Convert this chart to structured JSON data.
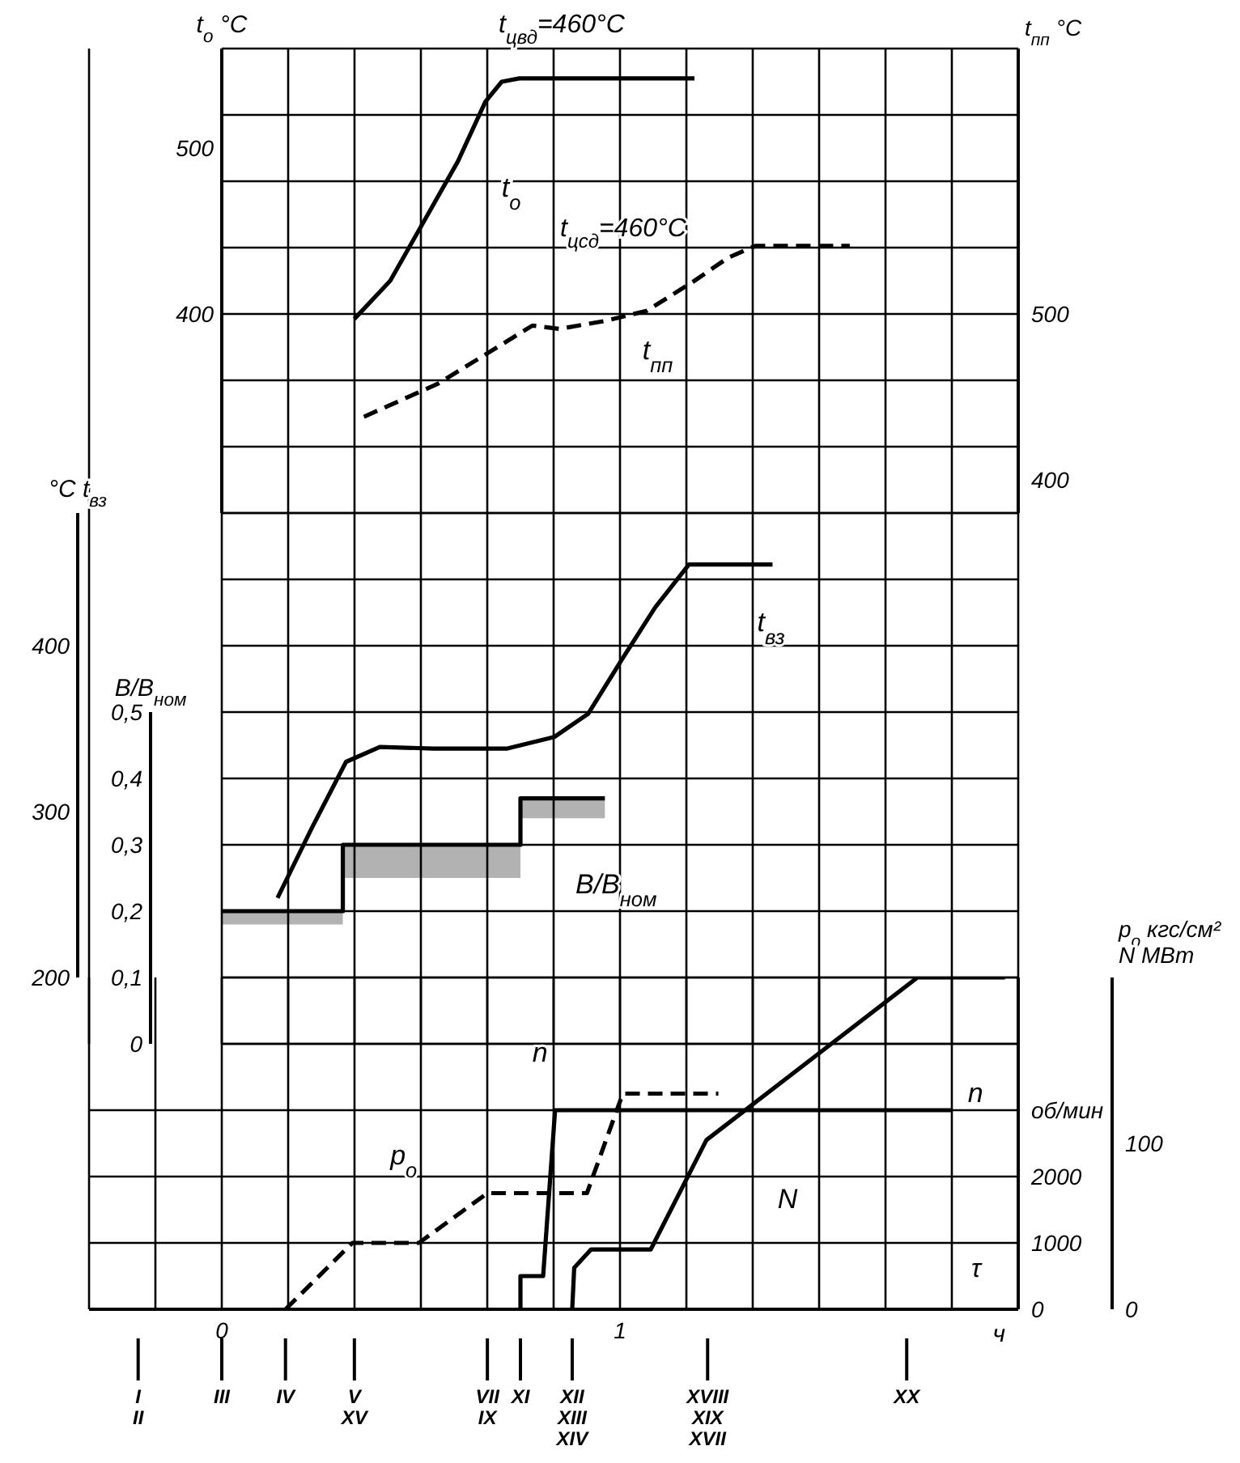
{
  "chart_data": [
    {
      "type": "line",
      "annotations": [
        "t$_{цвд}$=460°C",
        "t$_{цсд}$=460°C"
      ],
      "ylabel": "t$_{o}$ °C",
      "y2label": "t$_{пп}$ °C",
      "xlim": [
        -0.3333,
        2
      ],
      "xticks": [
        {
          "value": 0,
          "label": null
        },
        {
          "value": 0.1667,
          "label": null
        },
        {
          "value": 0.3333,
          "label": null
        },
        {
          "value": 0.5,
          "label": null
        },
        {
          "value": 0.6667,
          "label": null
        },
        {
          "value": 0.8333,
          "label": null
        },
        {
          "value": 1,
          "label": null
        },
        {
          "value": 1.1667,
          "label": null
        },
        {
          "value": 1.3333,
          "label": null
        },
        {
          "value": 1.5,
          "label": null
        },
        {
          "value": 1.6667,
          "label": null
        },
        {
          "value": 1.8333,
          "label": null
        },
        {
          "value": 2,
          "label": null
        }
      ],
      "ylim": [
        280,
        560
      ],
      "yticks": [
        {
          "value": 280,
          "label": null
        },
        {
          "value": 320,
          "label": null
        },
        {
          "value": 360,
          "label": null
        },
        400,
        {
          "value": 440,
          "label": null
        },
        {
          "value": 480,
          "label": null
        },
        500,
        {
          "value": 520,
          "label": null
        },
        {
          "value": 560,
          "label": null
        }
      ],
      "y2lim": [
        380,
        660
      ],
      "y2ticks": [
        400,
        500
      ],
      "tick_labels": "y",
      "grid": true,
      "series": [
        {
          "name": "t$_{o}$",
          "color": "#000000",
          "x": [
            0.333,
            0.423,
            0.508,
            0.593,
            0.662,
            0.703,
            0.747,
            1.187
          ],
          "values": [
            397,
            420,
            456,
            492,
            528,
            540,
            542,
            542
          ]
        },
        {
          "name": "t$_{пп}$",
          "color": "#000000",
          "axis": "y2",
          "line_style": "dashed",
          "x": [
            0.357,
            0.543,
            0.78,
            0.848,
            0.967,
            1.068,
            1.187,
            1.272,
            1.34,
            1.577
          ],
          "values": [
            438,
            458,
            493,
            491,
            496,
            502,
            520,
            534,
            541,
            541
          ]
        }
      ]
    },
    {
      "type": "line",
      "ylabel": "°C t$_{вз}$",
      "y2label": "B/B$_{ном}$",
      "xlim": [
        -0.3333,
        2
      ],
      "xticks": [
        {
          "value": 0,
          "label": null
        },
        {
          "value": 0.1667,
          "label": null
        },
        {
          "value": 0.3333,
          "label": null
        },
        {
          "value": 0.5,
          "label": null
        },
        {
          "value": 0.6667,
          "label": null
        },
        {
          "value": 0.8333,
          "label": null
        },
        {
          "value": 1,
          "label": null
        },
        {
          "value": 1.1667,
          "label": null
        },
        {
          "value": 1.3333,
          "label": null
        },
        {
          "value": 1.5,
          "label": null
        },
        {
          "value": 1.6667,
          "label": null
        },
        {
          "value": 1.8333,
          "label": null
        },
        {
          "value": 2,
          "label": null
        }
      ],
      "ylim": [
        160,
        480
      ],
      "yticks": [
        {
          "value": 160,
          "label": null
        },
        200,
        {
          "value": 240,
          "label": null
        },
        {
          "value": 280,
          "label": null
        },
        300,
        {
          "value": 320,
          "label": null
        },
        {
          "value": 360,
          "label": null
        },
        400,
        {
          "value": 440,
          "label": null
        },
        {
          "value": 480,
          "label": null
        }
      ],
      "y2lim": [
        0,
        0.8
      ],
      "y2ticks": [
        0,
        {
          "value": 0.1,
          "label": "0,1"
        },
        {
          "value": 0.2,
          "label": "0,2"
        },
        {
          "value": 0.3,
          "label": "0,3"
        },
        {
          "value": 0.4,
          "label": "0,4"
        },
        {
          "value": 0.5,
          "label": "0,5"
        }
      ],
      "tick_labels": "y",
      "grid": true,
      "series": [
        {
          "name": "t$_{вз}$",
          "color": "#000000",
          "x": [
            0.14,
            0.228,
            0.312,
            0.397,
            0.532,
            0.717,
            0.835,
            0.92,
            1.003,
            1.088,
            1.173,
            1.383
          ],
          "values": [
            248,
            291,
            330,
            339,
            338,
            338,
            345,
            359,
            391,
            423,
            449,
            449
          ]
        },
        {
          "name": "B/B$_{ном}$",
          "color": "#000000",
          "axis": "y2",
          "x": [
            0,
            0.304,
            0.304,
            0.75,
            0.75,
            0.962
          ],
          "values": [
            0.2,
            0.2,
            0.3,
            0.3,
            0.37,
            0.37
          ],
          "lower": [
            0.18,
            0.18,
            0.25,
            0.25,
            0.34,
            0.34
          ],
          "upper": [
            0.2,
            0.2,
            0.3,
            0.3,
            0.37,
            0.37
          ]
        }
      ]
    },
    {
      "type": "line",
      "xlabel": "ч",
      "annotations": [
        "τ"
      ],
      "y2label": "p$_{o}$ кгс/см²\nN МВт",
      "xlim": [
        -0.3333,
        2
      ],
      "xticks": [
        {
          "value": -0.3333,
          "label": null
        },
        {
          "value": -0.1667,
          "label": null
        },
        0,
        {
          "value": 0.1667,
          "label": null
        },
        {
          "value": 0.3333,
          "label": null
        },
        {
          "value": 0.5,
          "label": null
        },
        {
          "value": 0.6667,
          "label": null
        },
        {
          "value": 0.8333,
          "label": null
        },
        1,
        {
          "value": 1.1667,
          "label": null
        },
        {
          "value": 1.3333,
          "label": null
        },
        {
          "value": 1.5,
          "label": null
        },
        {
          "value": 1.6667,
          "label": null
        },
        {
          "value": 1.8333,
          "label": null
        },
        {
          "value": 2,
          "label": null
        }
      ],
      "ylim": [
        0,
        5000
      ],
      "yticks": [
        0,
        1000,
        2000,
        {
          "value": 3000,
          "label": "об/мин"
        },
        {
          "value": 4000,
          "label": null
        },
        {
          "value": 5000,
          "label": null
        }
      ],
      "y2lim": [
        0,
        200
      ],
      "y2ticks": [
        0,
        100
      ],
      "grid": true,
      "ref_lines": [
        {
          "axis": "x",
          "value": -0.21,
          "label": "I\nII"
        },
        {
          "axis": "x",
          "value": 0,
          "label": "III"
        },
        {
          "axis": "x",
          "value": 0.16,
          "label": "IV"
        },
        {
          "axis": "x",
          "value": 0.333,
          "label": "V\nXV"
        },
        {
          "axis": "x",
          "value": 0.667,
          "label": "VII\nIX"
        },
        {
          "axis": "x",
          "value": 0.75,
          "label": "XI"
        },
        {
          "axis": "x",
          "value": 0.88,
          "label": "XII\nXIII\nXIV"
        },
        {
          "axis": "x",
          "value": 1.22,
          "label": "XVIII\nXIX\nXVII"
        },
        {
          "axis": "x",
          "value": 1.72,
          "label": "XX"
        }
      ],
      "series": [
        {
          "name": "p$_{o}$",
          "color": "#000000",
          "axis": "y2",
          "line_style": "dashed",
          "x": [
            0.16,
            0.328,
            0.495,
            0.667,
            0.917,
            1.007,
            1.247
          ],
          "values": [
            0,
            40,
            40,
            70,
            70,
            130,
            130
          ]
        },
        {
          "name": "n",
          "color": "#000000",
          "x": [
            0.75,
            0.75,
            0.807,
            0.837,
            1.833
          ],
          "values": [
            0,
            500,
            500,
            3000,
            3000
          ]
        },
        {
          "name": "N",
          "color": "#000000",
          "axis": "y2",
          "x": [
            0.88,
            0.885,
            0.927,
            1.077,
            1.217,
            1.747,
            1.967
          ],
          "values": [
            0,
            25,
            36,
            36,
            102,
            200,
            200
          ]
        }
      ]
    }
  ]
}
